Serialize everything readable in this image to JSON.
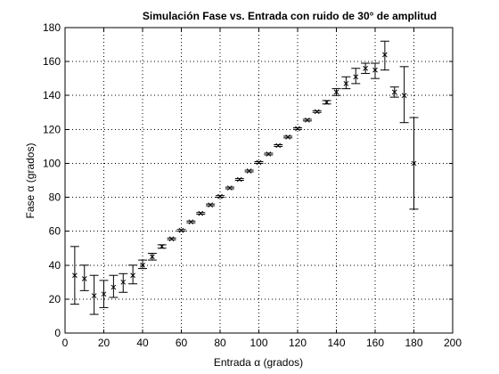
{
  "chart_data": {
    "type": "scatter",
    "title": "Simulación Fase vs. Entrada con ruido de 30° de amplitud",
    "xlabel": "Entrada α (grados)",
    "ylabel": "Fase α (grados)",
    "xlim": [
      0,
      200
    ],
    "ylim": [
      0,
      180
    ],
    "xticks": [
      0,
      20,
      40,
      60,
      80,
      100,
      120,
      140,
      160,
      180,
      200
    ],
    "yticks": [
      0,
      20,
      40,
      60,
      80,
      100,
      120,
      140,
      160,
      180
    ],
    "xtick_labels": [
      "0",
      "20",
      "40",
      "60",
      "80",
      "100",
      "120",
      "140",
      "160",
      "180",
      "200"
    ],
    "ytick_labels": [
      "0",
      "20",
      "40",
      "60",
      "80",
      "100",
      "120",
      "140",
      "160",
      "180"
    ],
    "grid": true,
    "grid_style": "dotted",
    "marker": "x",
    "color": "#000000",
    "points": [
      {
        "x": 5,
        "y": 34,
        "low": 17,
        "high": 51
      },
      {
        "x": 10,
        "y": 32,
        "low": 25,
        "high": 40
      },
      {
        "x": 15,
        "y": 22,
        "low": 11,
        "high": 34
      },
      {
        "x": 20,
        "y": 23,
        "low": 15,
        "high": 31
      },
      {
        "x": 25,
        "y": 27,
        "low": 21,
        "high": 34
      },
      {
        "x": 30,
        "y": 30,
        "low": 24,
        "high": 35
      },
      {
        "x": 35,
        "y": 34,
        "low": 29,
        "high": 40
      },
      {
        "x": 40,
        "y": 40,
        "low": 38,
        "high": 43
      },
      {
        "x": 45,
        "y": 45,
        "low": 43,
        "high": 47
      },
      {
        "x": 50,
        "y": 51,
        "low": 50,
        "high": 52
      },
      {
        "x": 55,
        "y": 55.5,
        "low": 55,
        "high": 56
      },
      {
        "x": 60,
        "y": 60.5,
        "low": 60,
        "high": 61
      },
      {
        "x": 65,
        "y": 65.5,
        "low": 65,
        "high": 66
      },
      {
        "x": 70,
        "y": 70.5,
        "low": 70,
        "high": 71
      },
      {
        "x": 75,
        "y": 75.5,
        "low": 75,
        "high": 76
      },
      {
        "x": 80,
        "y": 80.5,
        "low": 80,
        "high": 81
      },
      {
        "x": 85,
        "y": 85.5,
        "low": 85,
        "high": 86
      },
      {
        "x": 90,
        "y": 90.5,
        "low": 90,
        "high": 91
      },
      {
        "x": 95,
        "y": 95.5,
        "low": 95,
        "high": 96
      },
      {
        "x": 100,
        "y": 100.5,
        "low": 100,
        "high": 101
      },
      {
        "x": 105,
        "y": 105.5,
        "low": 105,
        "high": 106
      },
      {
        "x": 110,
        "y": 110.5,
        "low": 110,
        "high": 111
      },
      {
        "x": 115,
        "y": 115.5,
        "low": 115,
        "high": 116
      },
      {
        "x": 120,
        "y": 120.5,
        "low": 120,
        "high": 121
      },
      {
        "x": 125,
        "y": 125.5,
        "low": 125,
        "high": 126
      },
      {
        "x": 130,
        "y": 130.5,
        "low": 130,
        "high": 131
      },
      {
        "x": 135,
        "y": 136,
        "low": 135,
        "high": 137
      },
      {
        "x": 140,
        "y": 142,
        "low": 140,
        "high": 144
      },
      {
        "x": 145,
        "y": 147,
        "low": 144,
        "high": 151
      },
      {
        "x": 150,
        "y": 151,
        "low": 147,
        "high": 156
      },
      {
        "x": 155,
        "y": 156,
        "low": 153,
        "high": 159
      },
      {
        "x": 160,
        "y": 155,
        "low": 150,
        "high": 159
      },
      {
        "x": 165,
        "y": 164,
        "low": 155,
        "high": 172
      },
      {
        "x": 170,
        "y": 142,
        "low": 139,
        "high": 145
      },
      {
        "x": 175,
        "y": 140,
        "low": 124,
        "high": 157
      },
      {
        "x": 180,
        "y": 100,
        "low": 73,
        "high": 127
      }
    ]
  }
}
